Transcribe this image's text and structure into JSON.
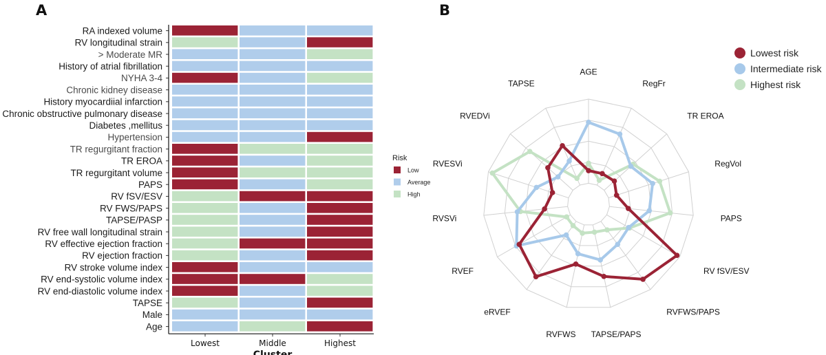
{
  "panels": {
    "a": "A",
    "b": "B"
  },
  "chart_data": [
    {
      "type": "heatmap",
      "panel": "A",
      "xlabel": "Cluster",
      "ylabel": "",
      "columns": [
        "Lowest",
        "Middle",
        "Highest"
      ],
      "rows": [
        "RA indexed volume",
        "RV longitudinal strain",
        "> Moderate MR",
        "History of atrial fibrillation",
        "NYHA 3-4",
        "Chronic kidney disease",
        "History myocardiial infarction",
        "Chronic obstructive pulmonary disease",
        "Diabetes ,mellitus",
        "Hypertension",
        "TR regurgitant fraction",
        "TR EROA",
        "TR regurgitant volume",
        "PAPS",
        "RV fSV/ESV",
        "RV FWS/PAPS",
        "TAPSE/PASP",
        "RV free wall longitudinal strain",
        "RV effective ejection fraction",
        "RV ejection fraction",
        "RV stroke volume index",
        "RV end-systolic volume index",
        "RV end-diastolic volume index",
        "TAPSE",
        "Male",
        "Age"
      ],
      "values": [
        [
          "Low",
          "Average",
          "Average"
        ],
        [
          "High",
          "Average",
          "Low"
        ],
        [
          "Average",
          "Average",
          "High"
        ],
        [
          "Average",
          "Average",
          "Average"
        ],
        [
          "Low",
          "Average",
          "High"
        ],
        [
          "Average",
          "Average",
          "Average"
        ],
        [
          "Average",
          "Average",
          "Average"
        ],
        [
          "Average",
          "Average",
          "Average"
        ],
        [
          "Average",
          "Average",
          "Average"
        ],
        [
          "Average",
          "Average",
          "Low"
        ],
        [
          "Low",
          "High",
          "High"
        ],
        [
          "Low",
          "Average",
          "High"
        ],
        [
          "Low",
          "High",
          "High"
        ],
        [
          "Low",
          "Average",
          "High"
        ],
        [
          "High",
          "Low",
          "Low"
        ],
        [
          "High",
          "Average",
          "Low"
        ],
        [
          "High",
          "Average",
          "Low"
        ],
        [
          "High",
          "Average",
          "Low"
        ],
        [
          "High",
          "Low",
          "Low"
        ],
        [
          "High",
          "Average",
          "Low"
        ],
        [
          "Low",
          "Average",
          "Average"
        ],
        [
          "Low",
          "Low",
          "High"
        ],
        [
          "Low",
          "Average",
          "High"
        ],
        [
          "High",
          "Average",
          "Low"
        ],
        [
          "Average",
          "Average",
          "Average"
        ],
        [
          "Average",
          "High",
          "Low"
        ]
      ],
      "legend": {
        "title": "Risk",
        "items": [
          {
            "label": "Low",
            "color": "#9b2335"
          },
          {
            "label": "Average",
            "color": "#b0cdeb"
          },
          {
            "label": "High",
            "color": "#c4e2c4"
          }
        ]
      }
    },
    {
      "type": "radar",
      "panel": "B",
      "axes": [
        "AGE",
        "RegFr",
        "TR EROA",
        "RegVol",
        "PAPS",
        "RV fSV/ESV",
        "RVFWS/PAPS",
        "TAPSE/PAPS",
        "RVFWS",
        "eRVEF",
        "RVEF",
        "RVSVi",
        "RVESVi",
        "RVEDVi",
        "TAPSE"
      ],
      "rlim": [
        0,
        1
      ],
      "grid_levels": 5,
      "series": [
        {
          "name": "Lowest risk",
          "color": "#9b2335",
          "values": [
            0.32,
            0.32,
            0.33,
            0.28,
            0.38,
            0.97,
            0.88,
            0.7,
            0.58,
            0.85,
            0.76,
            0.42,
            0.36,
            0.52,
            0.61
          ]
        },
        {
          "name": "Intermediate risk",
          "color": "#a7c9ea",
          "values": [
            0.78,
            0.73,
            0.54,
            0.64,
            0.58,
            0.44,
            0.47,
            0.54,
            0.48,
            0.36,
            0.79,
            0.68,
            0.52,
            0.39,
            0.45
          ]
        },
        {
          "name": "Highest risk",
          "color": "#c4e2c4",
          "values": [
            0.39,
            0.25,
            0.57,
            0.71,
            0.78,
            0.45,
            0.3,
            0.27,
            0.28,
            0.25,
            0.24,
            0.65,
            0.96,
            0.75,
            0.27
          ]
        }
      ],
      "legend_position": "top-right"
    }
  ]
}
